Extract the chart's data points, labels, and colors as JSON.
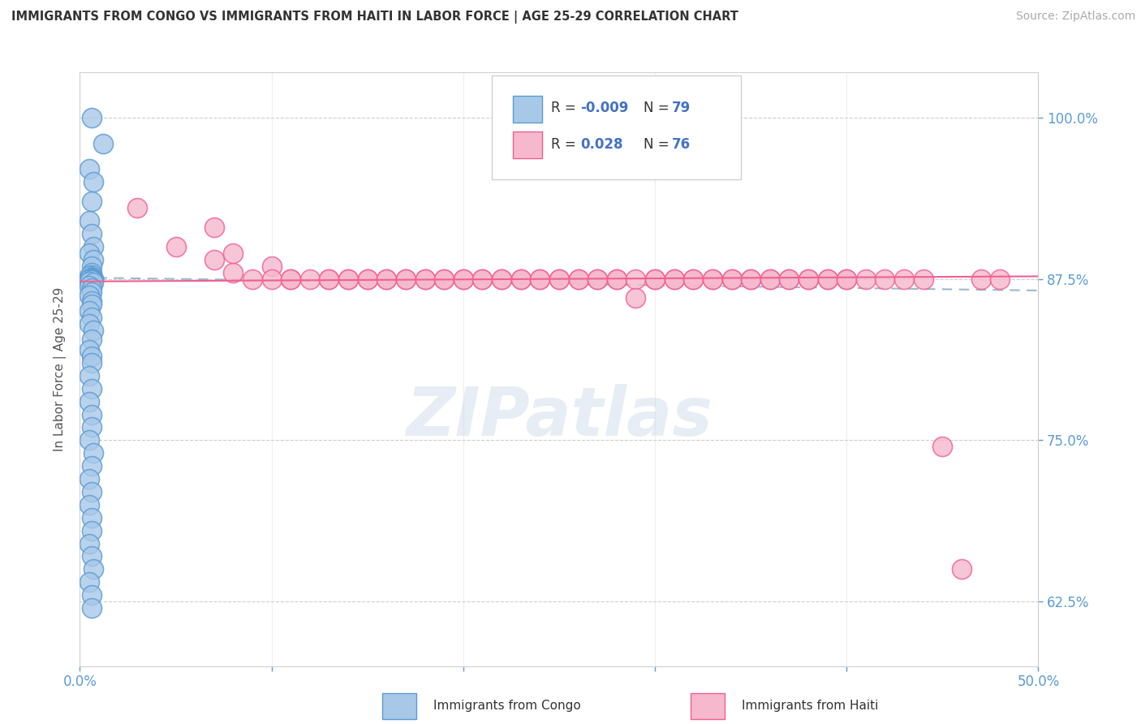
{
  "title": "IMMIGRANTS FROM CONGO VS IMMIGRANTS FROM HAITI IN LABOR FORCE | AGE 25-29 CORRELATION CHART",
  "source_text": "Source: ZipAtlas.com",
  "ylabel": "In Labor Force | Age 25-29",
  "xlim": [
    0.0,
    0.5
  ],
  "ylim": [
    0.575,
    1.035
  ],
  "yticks": [
    0.625,
    0.75,
    0.875,
    1.0
  ],
  "ytick_labels": [
    "62.5%",
    "75.0%",
    "87.5%",
    "100.0%"
  ],
  "xticks": [
    0.0,
    0.1,
    0.2,
    0.3,
    0.4,
    0.5
  ],
  "xtick_labels": [
    "0.0%",
    "",
    "",
    "",
    "",
    "50.0%"
  ],
  "legend_labels": [
    "Immigrants from Congo",
    "Immigrants from Haiti"
  ],
  "congo_color": "#a8c8e8",
  "haiti_color": "#f5b8cc",
  "congo_edge_color": "#5b9bd5",
  "haiti_edge_color": "#f06090",
  "congo_line_color": "#9bb8d0",
  "haiti_line_color": "#f06090",
  "R_congo": -0.009,
  "N_congo": 79,
  "R_haiti": 0.028,
  "N_haiti": 76,
  "watermark": "ZIPatlas",
  "congo_points_x": [
    0.006,
    0.012,
    0.005,
    0.007,
    0.006,
    0.005,
    0.006,
    0.007,
    0.005,
    0.007,
    0.006,
    0.006,
    0.006,
    0.005,
    0.006,
    0.006,
    0.006,
    0.005,
    0.007,
    0.005,
    0.006,
    0.005,
    0.006,
    0.006,
    0.005,
    0.006,
    0.005,
    0.006,
    0.006,
    0.005,
    0.006,
    0.006,
    0.005,
    0.005,
    0.007,
    0.006,
    0.005,
    0.006,
    0.006,
    0.005,
    0.006,
    0.005,
    0.006,
    0.006,
    0.005,
    0.007,
    0.005,
    0.006,
    0.006,
    0.005,
    0.006,
    0.006,
    0.005,
    0.006,
    0.005,
    0.007,
    0.006,
    0.005,
    0.006,
    0.006,
    0.005,
    0.006,
    0.005,
    0.006,
    0.006,
    0.005,
    0.007,
    0.006,
    0.005,
    0.006,
    0.005,
    0.006,
    0.006,
    0.005,
    0.006,
    0.007,
    0.005,
    0.006,
    0.006
  ],
  "congo_points_y": [
    1.0,
    0.98,
    0.96,
    0.95,
    0.935,
    0.92,
    0.91,
    0.9,
    0.895,
    0.89,
    0.885,
    0.88,
    0.878,
    0.877,
    0.876,
    0.876,
    0.876,
    0.875,
    0.875,
    0.875,
    0.875,
    0.875,
    0.875,
    0.875,
    0.875,
    0.875,
    0.875,
    0.875,
    0.875,
    0.875,
    0.875,
    0.875,
    0.875,
    0.875,
    0.875,
    0.875,
    0.875,
    0.875,
    0.875,
    0.875,
    0.875,
    0.875,
    0.874,
    0.874,
    0.873,
    0.872,
    0.87,
    0.868,
    0.865,
    0.862,
    0.858,
    0.855,
    0.85,
    0.845,
    0.84,
    0.835,
    0.828,
    0.82,
    0.815,
    0.81,
    0.8,
    0.79,
    0.78,
    0.77,
    0.76,
    0.75,
    0.74,
    0.73,
    0.72,
    0.71,
    0.7,
    0.69,
    0.68,
    0.67,
    0.66,
    0.65,
    0.64,
    0.63,
    0.62
  ],
  "haiti_points_x": [
    0.03,
    0.05,
    0.07,
    0.07,
    0.08,
    0.08,
    0.09,
    0.1,
    0.1,
    0.11,
    0.11,
    0.12,
    0.13,
    0.13,
    0.14,
    0.14,
    0.15,
    0.15,
    0.16,
    0.16,
    0.17,
    0.17,
    0.18,
    0.18,
    0.19,
    0.19,
    0.2,
    0.2,
    0.21,
    0.21,
    0.22,
    0.22,
    0.23,
    0.23,
    0.24,
    0.24,
    0.25,
    0.25,
    0.26,
    0.26,
    0.27,
    0.27,
    0.28,
    0.28,
    0.29,
    0.29,
    0.3,
    0.3,
    0.31,
    0.31,
    0.32,
    0.32,
    0.33,
    0.33,
    0.34,
    0.34,
    0.35,
    0.35,
    0.36,
    0.36,
    0.37,
    0.37,
    0.38,
    0.38,
    0.39,
    0.39,
    0.4,
    0.4,
    0.41,
    0.42,
    0.43,
    0.44,
    0.45,
    0.46,
    0.47,
    0.48
  ],
  "haiti_points_y": [
    0.93,
    0.9,
    0.915,
    0.89,
    0.88,
    0.895,
    0.875,
    0.885,
    0.875,
    0.875,
    0.875,
    0.875,
    0.875,
    0.875,
    0.875,
    0.875,
    0.875,
    0.875,
    0.875,
    0.875,
    0.875,
    0.875,
    0.875,
    0.875,
    0.875,
    0.875,
    0.875,
    0.875,
    0.875,
    0.875,
    0.875,
    0.875,
    0.875,
    0.875,
    0.875,
    0.875,
    0.875,
    0.875,
    0.875,
    0.875,
    0.875,
    0.875,
    0.875,
    0.875,
    0.875,
    0.86,
    0.875,
    0.875,
    0.875,
    0.875,
    0.875,
    0.875,
    0.875,
    0.875,
    0.875,
    0.875,
    0.875,
    0.875,
    0.875,
    0.875,
    0.875,
    0.875,
    0.875,
    0.875,
    0.875,
    0.875,
    0.875,
    0.875,
    0.875,
    0.875,
    0.875,
    0.875,
    0.745,
    0.65,
    0.875,
    0.875
  ]
}
